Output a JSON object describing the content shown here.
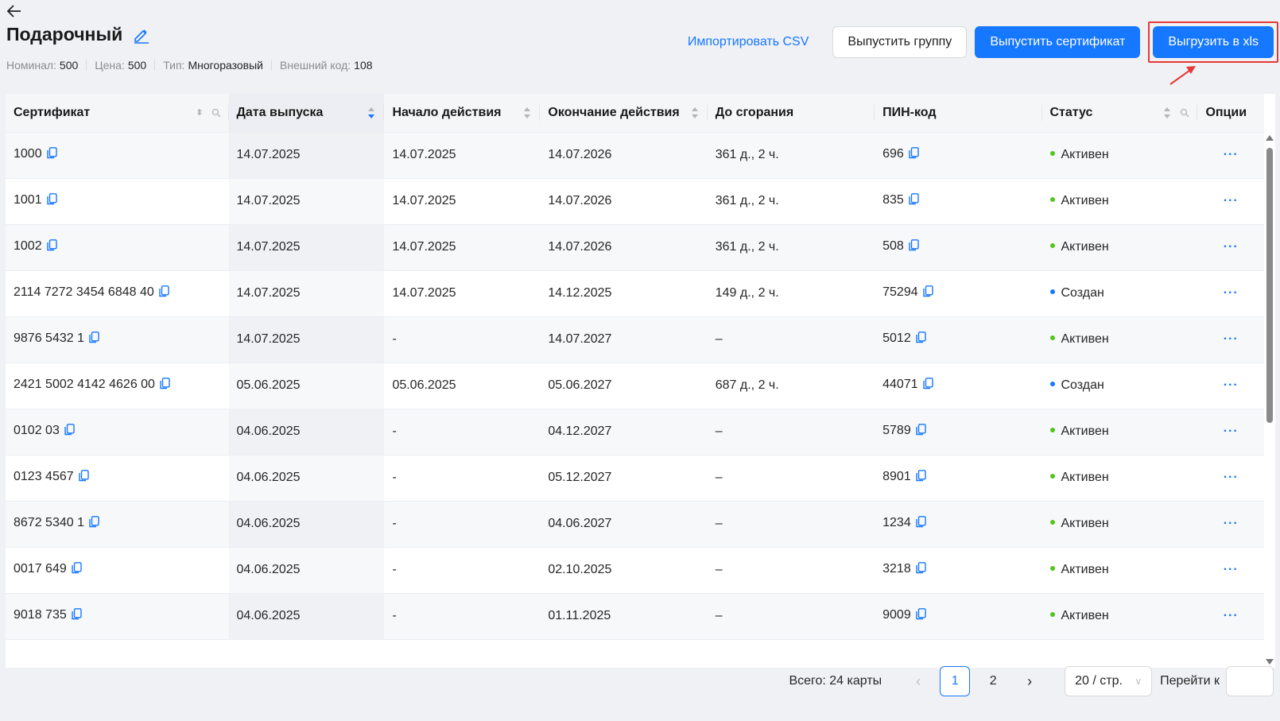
{
  "page": {
    "back_icon": "arrow-left-icon",
    "title": "Подарочный",
    "edit_icon": "pencil-icon",
    "meta": [
      {
        "label": "Номинал:",
        "value": "500"
      },
      {
        "label": "Цена:",
        "value": "500"
      },
      {
        "label": "Тип:",
        "value": "Многоразовый"
      },
      {
        "label": "Внешний код:",
        "value": "108"
      }
    ]
  },
  "toolbar": {
    "import_csv": "Импортировать CSV",
    "issue_group": "Выпустить группу",
    "issue_certificate": "Выпустить сертификат",
    "export_xls": "Выгрузить в xls"
  },
  "colors": {
    "primary": "#1677ff",
    "active_status": "#52c41a",
    "created_status": "#1677ff",
    "highlight": "#e53935"
  },
  "table": {
    "columns": [
      {
        "label": "Сертификат",
        "sortable": true,
        "searchable": true
      },
      {
        "label": "Дата выпуска",
        "sortable": true,
        "sorted": "desc"
      },
      {
        "label": "Начало действия",
        "sortable": true
      },
      {
        "label": "Окончание действия",
        "sortable": true
      },
      {
        "label": "До сгорания"
      },
      {
        "label": "ПИН-код"
      },
      {
        "label": "Статус",
        "sortable": true,
        "searchable": true
      },
      {
        "label": "Опции"
      }
    ],
    "rows": [
      {
        "cert": "1000",
        "issued": "14.07.2025",
        "start": "14.07.2025",
        "end": "14.07.2026",
        "left": "361 д., 2 ч.",
        "pin": "696",
        "status": "Активен",
        "status_type": "active",
        "options": "···"
      },
      {
        "cert": "1001",
        "issued": "14.07.2025",
        "start": "14.07.2025",
        "end": "14.07.2026",
        "left": "361 д., 2 ч.",
        "pin": "835",
        "status": "Активен",
        "status_type": "active",
        "options": "···"
      },
      {
        "cert": "1002",
        "issued": "14.07.2025",
        "start": "14.07.2025",
        "end": "14.07.2026",
        "left": "361 д., 2 ч.",
        "pin": "508",
        "status": "Активен",
        "status_type": "active",
        "options": "···"
      },
      {
        "cert": "2114 7272 3454 6848 40",
        "issued": "14.07.2025",
        "start": "14.07.2025",
        "end": "14.12.2025",
        "left": "149 д., 2 ч.",
        "pin": "75294",
        "status": "Создан",
        "status_type": "created",
        "options": "···"
      },
      {
        "cert": "9876 5432 1",
        "issued": "14.07.2025",
        "start": "-",
        "end": "14.07.2027",
        "left": "–",
        "pin": "5012",
        "status": "Активен",
        "status_type": "active",
        "options": "···"
      },
      {
        "cert": "2421 5002 4142 4626 00",
        "issued": "05.06.2025",
        "start": "05.06.2025",
        "end": "05.06.2027",
        "left": "687 д., 2 ч.",
        "pin": "44071",
        "status": "Создан",
        "status_type": "created",
        "options": "···"
      },
      {
        "cert": "0102 03",
        "issued": "04.06.2025",
        "start": "-",
        "end": "04.12.2027",
        "left": "–",
        "pin": "5789",
        "status": "Активен",
        "status_type": "active",
        "options": "···"
      },
      {
        "cert": "0123 4567",
        "issued": "04.06.2025",
        "start": "-",
        "end": "05.12.2027",
        "left": "–",
        "pin": "8901",
        "status": "Активен",
        "status_type": "active",
        "options": "···"
      },
      {
        "cert": "8672 5340 1",
        "issued": "04.06.2025",
        "start": "-",
        "end": "04.06.2027",
        "left": "–",
        "pin": "1234",
        "status": "Активен",
        "status_type": "active",
        "options": "···"
      },
      {
        "cert": "0017 649",
        "issued": "04.06.2025",
        "start": "-",
        "end": "02.10.2025",
        "left": "–",
        "pin": "3218",
        "status": "Активен",
        "status_type": "active",
        "options": "···"
      },
      {
        "cert": "9018 735",
        "issued": "04.06.2025",
        "start": "-",
        "end": "01.11.2025",
        "left": "–",
        "pin": "9009",
        "status": "Активен",
        "status_type": "active",
        "options": "···"
      }
    ]
  },
  "pagination": {
    "total": "Всего: 24 карты",
    "pages": [
      "1",
      "2"
    ],
    "current": "1",
    "page_size": "20 / стр.",
    "goto_label": "Перейти к",
    "goto_value": ""
  }
}
